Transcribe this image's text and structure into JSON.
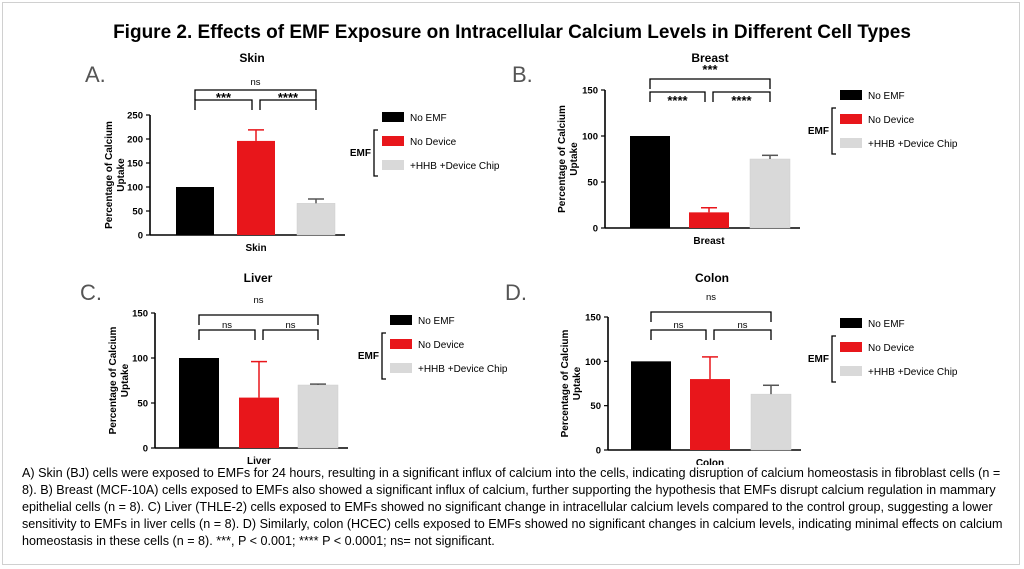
{
  "figure_title": "Figure 2. Effects of EMF Exposure on Intracellular Calcium Levels in Different Cell Types",
  "caption": "A) Skin (BJ) cells were exposed to EMFs for 24 hours, resulting in a significant influx of calcium into the cells, indicating disruption of calcium homeostasis in fibroblast cells (n = 8). B) Breast (MCF-10A) cells exposed to EMFs also showed a significant influx of calcium, further supporting the hypothesis that EMFs disrupt calcium regulation in mammary epithelial cells (n = 8). C) Liver (THLE-2) cells exposed to EMFs showed no significant change in intracellular calcium levels compared to the control group, suggesting a lower sensitivity to EMFs in liver cells (n = 8). D) Similarly, colon (HCEC) cells exposed to EMFs showed no significant changes in calcium levels, indicating minimal effects on calcium homeostasis in these cells (n = 8). ***, P < 0.001; **** P < 0.0001; ns= not significant.",
  "colors": {
    "no_emf": "#000000",
    "no_device": "#e8161b",
    "hhb_chip": "#d9d9d9",
    "error_no_device": "#e8161b",
    "error_hhb": "#555555"
  },
  "chart_data": [
    {
      "type": "bar",
      "panel": "A.",
      "title": "Skin",
      "xlabel": "Skin",
      "ylabel": "Percentage of Calcium Uptake",
      "ylim": [
        0,
        250
      ],
      "yticks": [
        0,
        50,
        100,
        150,
        200,
        250
      ],
      "categories": [
        "No EMF",
        "No Device",
        "+HHB +Device Chip"
      ],
      "values": [
        100,
        196,
        66
      ],
      "errors": [
        0,
        23,
        9
      ],
      "legend_group": "EMF",
      "significance": [
        {
          "from": 0,
          "to": 1,
          "label": "***"
        },
        {
          "from": 1,
          "to": 2,
          "label": "****"
        },
        {
          "from": 0,
          "to": 2,
          "label": "ns"
        }
      ]
    },
    {
      "type": "bar",
      "panel": "B.",
      "title": "Breast",
      "xlabel": "Breast",
      "ylabel": "Percentage of Calcium Uptake",
      "ylim": [
        0,
        150
      ],
      "yticks": [
        0,
        50,
        100,
        150
      ],
      "categories": [
        "No EMF",
        "No Device",
        "+HHB +Device Chip"
      ],
      "values": [
        100,
        17,
        75
      ],
      "errors": [
        0,
        5,
        4
      ],
      "legend_group": "EMF",
      "significance": [
        {
          "from": 0,
          "to": 1,
          "label": "****"
        },
        {
          "from": 1,
          "to": 2,
          "label": "****"
        },
        {
          "from": 0,
          "to": 2,
          "label": "***"
        }
      ]
    },
    {
      "type": "bar",
      "panel": "C.",
      "title": "Liver",
      "xlabel": "Liver",
      "ylabel": "Percentage of Calcium Uptake",
      "ylim": [
        0,
        150
      ],
      "yticks": [
        0,
        50,
        100,
        150
      ],
      "categories": [
        "No EMF",
        "No Device",
        "+HHB +Device Chip"
      ],
      "values": [
        100,
        56,
        70
      ],
      "errors": [
        0,
        40,
        1
      ],
      "legend_group": "EMF",
      "significance": [
        {
          "from": 0,
          "to": 1,
          "label": "ns"
        },
        {
          "from": 1,
          "to": 2,
          "label": "ns"
        },
        {
          "from": 0,
          "to": 2,
          "label": "ns"
        }
      ]
    },
    {
      "type": "bar",
      "panel": "D.",
      "title": "Colon",
      "xlabel": "Colon",
      "ylabel": "Percentage of Calcium Uptake",
      "ylim": [
        0,
        150
      ],
      "yticks": [
        0,
        50,
        100,
        150
      ],
      "categories": [
        "No EMF",
        "No Device",
        "+HHB +Device Chip"
      ],
      "values": [
        100,
        80,
        63
      ],
      "errors": [
        0,
        25,
        10
      ],
      "legend_group": "EMF",
      "significance": [
        {
          "from": 0,
          "to": 1,
          "label": "ns"
        },
        {
          "from": 1,
          "to": 2,
          "label": "ns"
        },
        {
          "from": 0,
          "to": 2,
          "label": "ns"
        }
      ]
    }
  ]
}
